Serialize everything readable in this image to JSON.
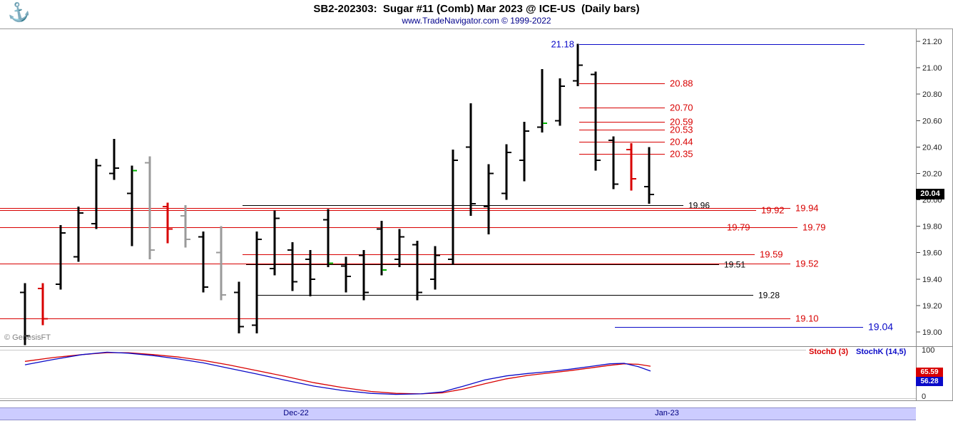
{
  "header": {
    "title": "SB2-202303:  Sugar #11 (Comb) Mar 2023 @ ICE-US  (Daily bars)",
    "subtitle": "www.TradeNavigator.com © 1999-2022",
    "logo_icon": "⚓"
  },
  "watermark": "© GenesisFT",
  "axis": {
    "last_price": "20.04",
    "stoch_top": "100",
    "stoch_bottom": "0",
    "stoch_d_value": "65.59",
    "stoch_k_value": "56.28"
  },
  "stoch_legend": {
    "d": "StochD (3)",
    "k": "StochK (14,5)"
  },
  "date_axis": {
    "labels": [
      "Dec-22",
      "Jan-23"
    ]
  },
  "chart_data": {
    "type": "ohlc-bar",
    "title": "SB2-202303: Sugar #11 (Comb) Mar 2023 @ ICE-US (Daily bars)",
    "source": "www.TradeNavigator.com © 1999-2022",
    "ylim": [
      18.89,
      21.29
    ],
    "y_ticks": [
      21.2,
      21.0,
      20.8,
      20.6,
      20.4,
      20.2,
      20.0,
      19.8,
      19.6,
      19.4,
      19.2,
      19.0
    ],
    "palette": {
      "k": "#000000",
      "r": "#d80000",
      "y": "#9a9a9a",
      "b": "#0a0ac8",
      "g": "#00b400"
    },
    "bars_format": [
      "color",
      "open",
      "high",
      "low",
      "close",
      "mark"
    ],
    "bars": [
      [
        "k",
        19.3,
        19.37,
        18.9,
        18.97
      ],
      [
        "r",
        19.33,
        19.37,
        19.05,
        19.1
      ],
      [
        "k",
        19.36,
        19.81,
        19.32,
        19.75
      ],
      [
        "k",
        19.57,
        19.95,
        19.53,
        19.9
      ],
      [
        "k",
        19.82,
        20.31,
        19.78,
        20.26
      ],
      [
        "k",
        20.2,
        20.46,
        20.15,
        20.24
      ],
      [
        "k",
        20.05,
        20.26,
        19.65,
        20.22,
        "g"
      ],
      [
        "y",
        20.28,
        20.33,
        19.55,
        19.62
      ],
      [
        "r",
        19.95,
        19.98,
        19.67,
        19.78
      ],
      [
        "y",
        19.88,
        19.96,
        19.64,
        19.7
      ],
      [
        "k",
        19.72,
        19.76,
        19.3,
        19.34
      ],
      [
        "y",
        19.6,
        19.8,
        19.24,
        19.28
      ],
      [
        "k",
        19.3,
        19.38,
        18.99,
        19.04
      ],
      [
        "k",
        19.05,
        19.76,
        18.99,
        19.7
      ],
      [
        "k",
        19.48,
        19.92,
        19.43,
        19.86
      ],
      [
        "k",
        19.62,
        19.68,
        19.31,
        19.38
      ],
      [
        "k",
        19.55,
        19.62,
        19.27,
        19.4
      ],
      [
        "k",
        19.85,
        19.93,
        19.49,
        19.52,
        "g"
      ],
      [
        "k",
        19.5,
        19.57,
        19.3,
        19.42
      ],
      [
        "k",
        19.58,
        19.62,
        19.24,
        19.3
      ],
      [
        "k",
        19.78,
        19.84,
        19.43,
        19.47,
        "g"
      ],
      [
        "k",
        19.55,
        19.78,
        19.49,
        19.72
      ],
      [
        "k",
        19.66,
        19.69,
        19.24,
        19.3
      ],
      [
        "k",
        19.4,
        19.65,
        19.32,
        19.58
      ],
      [
        "k",
        19.55,
        20.38,
        19.51,
        20.3
      ],
      [
        "k",
        20.4,
        20.73,
        19.88,
        19.97
      ],
      [
        "k",
        19.95,
        20.27,
        19.74,
        20.2
      ],
      [
        "k",
        20.05,
        20.42,
        20.0,
        20.36
      ],
      [
        "k",
        20.3,
        20.59,
        20.14,
        20.52
      ],
      [
        "k",
        20.55,
        20.99,
        20.51,
        20.58,
        "g"
      ],
      [
        "k",
        20.6,
        20.92,
        20.56,
        20.86
      ],
      [
        "k",
        20.9,
        21.18,
        20.86,
        21.02
      ],
      [
        "k",
        20.95,
        20.97,
        20.22,
        20.3
      ],
      [
        "k",
        20.45,
        20.48,
        20.08,
        20.12
      ],
      [
        "r",
        20.38,
        20.43,
        20.07,
        20.16
      ],
      [
        "k",
        20.1,
        20.4,
        19.97,
        20.04
      ]
    ],
    "levels_format": [
      "price",
      "color",
      "x1",
      "x2",
      "label_side",
      "label",
      "font_size"
    ],
    "levels": [
      [
        21.18,
        "b",
        812,
        1212,
        "left",
        "21.18",
        13
      ],
      [
        20.88,
        "r",
        812,
        932,
        "right",
        "20.88",
        13
      ],
      [
        20.7,
        "r",
        812,
        932,
        "right",
        "20.70",
        13
      ],
      [
        20.59,
        "r",
        812,
        932,
        "right",
        "20.59",
        13
      ],
      [
        20.53,
        "r",
        812,
        932,
        "right",
        "20.53",
        13
      ],
      [
        20.44,
        "r",
        812,
        932,
        "right",
        "20.44",
        13
      ],
      [
        20.35,
        "r",
        812,
        932,
        "right",
        "20.35",
        13
      ],
      [
        19.96,
        "k",
        340,
        958,
        "right",
        "19.96",
        12
      ],
      [
        19.94,
        "r",
        0,
        1108,
        "right",
        "19.94",
        13
      ],
      [
        19.92,
        "r",
        0,
        1060,
        "right",
        "19.92",
        13
      ],
      [
        19.79,
        "r",
        0,
        1012,
        "right",
        "19.79",
        13
      ],
      [
        19.79,
        "r",
        0,
        1118,
        "right",
        "19.79",
        13
      ],
      [
        19.59,
        "r",
        340,
        1058,
        "right",
        "19.59",
        13
      ],
      [
        19.52,
        "r",
        0,
        1108,
        "right",
        "19.52",
        13
      ],
      [
        19.51,
        "k",
        345,
        1008,
        "right",
        "19.51",
        12
      ],
      [
        19.28,
        "k",
        360,
        1056,
        "right",
        "19.28",
        12
      ],
      [
        19.1,
        "r",
        0,
        1108,
        "right",
        "19.10",
        13
      ],
      [
        19.04,
        "b",
        862,
        1210,
        "right",
        "19.04",
        14
      ]
    ],
    "stoch": {
      "ylim": [
        0,
        100
      ],
      "d_name": "StochD (3)",
      "k_name": "StochK (14,5)",
      "d": [
        [
          35,
          76
        ],
        [
          75,
          84
        ],
        [
          115,
          90
        ],
        [
          150,
          94
        ],
        [
          180,
          94
        ],
        [
          215,
          90
        ],
        [
          250,
          85
        ],
        [
          285,
          78
        ],
        [
          320,
          69
        ],
        [
          360,
          57
        ],
        [
          400,
          45
        ],
        [
          440,
          32
        ],
        [
          480,
          22
        ],
        [
          520,
          14
        ],
        [
          555,
          10
        ],
        [
          590,
          9
        ],
        [
          620,
          11
        ],
        [
          650,
          19
        ],
        [
          680,
          30
        ],
        [
          710,
          40
        ],
        [
          740,
          47
        ],
        [
          770,
          52
        ],
        [
          800,
          57
        ],
        [
          830,
          63
        ],
        [
          855,
          68
        ],
        [
          875,
          71
        ],
        [
          895,
          70
        ],
        [
          912,
          66
        ]
      ],
      "k": [
        [
          35,
          69
        ],
        [
          75,
          80
        ],
        [
          115,
          90
        ],
        [
          150,
          95
        ],
        [
          180,
          93
        ],
        [
          215,
          88
        ],
        [
          250,
          81
        ],
        [
          285,
          73
        ],
        [
          320,
          62
        ],
        [
          360,
          50
        ],
        [
          400,
          37
        ],
        [
          440,
          25
        ],
        [
          480,
          16
        ],
        [
          520,
          10
        ],
        [
          555,
          8
        ],
        [
          590,
          9
        ],
        [
          620,
          13
        ],
        [
          650,
          25
        ],
        [
          680,
          38
        ],
        [
          710,
          46
        ],
        [
          740,
          51
        ],
        [
          770,
          55
        ],
        [
          800,
          60
        ],
        [
          830,
          66
        ],
        [
          855,
          71
        ],
        [
          875,
          72
        ],
        [
          895,
          65
        ],
        [
          912,
          56
        ]
      ]
    }
  }
}
